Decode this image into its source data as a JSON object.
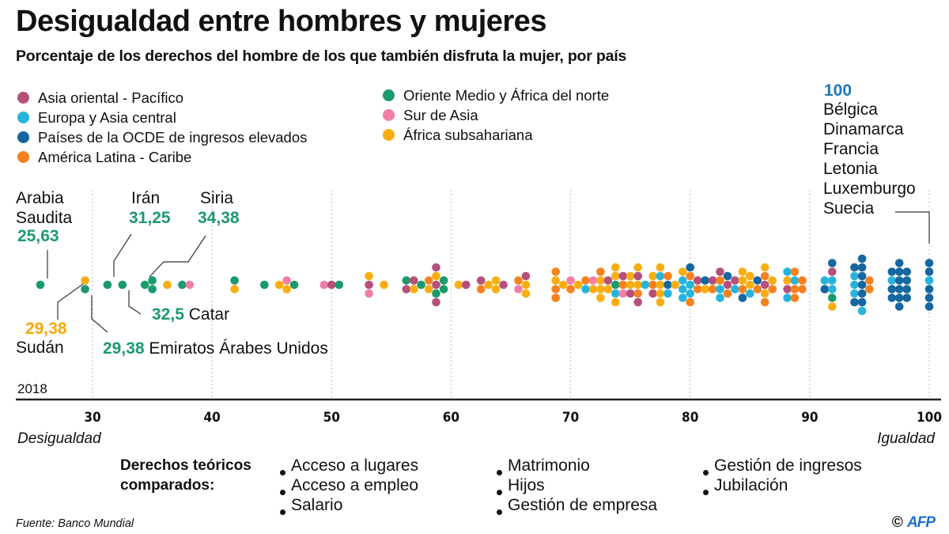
{
  "title": "Desigualdad entre hombres y mujeres",
  "subtitle": "Porcentaje de los derechos del hombre de los que también disfruta la mujer, por país",
  "legend": [
    {
      "label": "Asia oriental - Pacífico",
      "key": "eap",
      "color": "#b5507a"
    },
    {
      "label": "Europa y Asia central",
      "key": "eca",
      "color": "#27b4dc"
    },
    {
      "label": "Países de la OCDE de ingresos elevados",
      "key": "oecd",
      "color": "#14679f"
    },
    {
      "label": "América Latina - Caribe",
      "key": "lac",
      "color": "#f6821f"
    },
    {
      "label": "Oriente Medio y África del norte",
      "key": "mena",
      "color": "#1a9b6c"
    },
    {
      "label": "Sur de Asia",
      "key": "sa",
      "color": "#f07fa8"
    },
    {
      "label": "África subsahariana",
      "key": "ssa",
      "color": "#f8ae13"
    }
  ],
  "annotations": {
    "saudi_name": [
      "Arabia",
      "Saudita"
    ],
    "saudi_value": "25,63",
    "iran_name": "Irán",
    "iran_value": "31,25",
    "syria_name": "Siria",
    "syria_value": "34,38",
    "qatar_value": "32,5",
    "qatar_name": "Catar",
    "sudan_value": "29,38",
    "sudan_name": "Sudán",
    "uae_value": "29,38",
    "uae_name": "Emiratos Árabes Unidos",
    "top_value": "100",
    "top_countries": [
      "Bélgica",
      "Dinamarca",
      "Francia",
      "Letonia",
      "Luxemburgo",
      "Suecia"
    ]
  },
  "year": "2018",
  "axis_end_labels": {
    "left": "Desigualdad",
    "right": "Igualdad"
  },
  "rights": {
    "heading": [
      "Derechos teóricos",
      "comparados:"
    ],
    "items": [
      "Acceso a lugares",
      "Acceso a empleo",
      "Salario",
      "Matrimonio",
      "Hijos",
      "Gestión de empresa",
      "Gestión de ingresos",
      "Jubilación"
    ]
  },
  "source": "Fuente: Banco Mundial",
  "credit": {
    "symbol": "©",
    "brand": "AFP"
  },
  "chart_data": {
    "type": "scatter",
    "subtype": "beeswarm",
    "title": "Desigualdad entre hombres y mujeres",
    "xlabel": "Porcentaje de los derechos del hombre de los que también disfruta la mujer",
    "xlim": [
      24,
      100.5
    ],
    "xticks": [
      30,
      40,
      50,
      60,
      70,
      80,
      90,
      100
    ],
    "grid": true,
    "legend_position": "top-left",
    "groups": [
      {
        "x": 25.63,
        "regions": [
          "mena"
        ]
      },
      {
        "x": 29.38,
        "regions": [
          "ssa",
          "mena"
        ]
      },
      {
        "x": 31.25,
        "regions": [
          "mena"
        ]
      },
      {
        "x": 32.5,
        "regions": [
          "mena"
        ]
      },
      {
        "x": 34.38,
        "regions": [
          "mena"
        ]
      },
      {
        "x": 35.0,
        "regions": [
          "mena",
          "mena"
        ]
      },
      {
        "x": 36.25,
        "regions": [
          "ssa"
        ]
      },
      {
        "x": 37.5,
        "regions": [
          "mena"
        ]
      },
      {
        "x": 38.13,
        "regions": [
          "sa"
        ]
      },
      {
        "x": 41.88,
        "regions": [
          "mena",
          "ssa"
        ]
      },
      {
        "x": 44.38,
        "regions": [
          "mena"
        ]
      },
      {
        "x": 45.63,
        "regions": [
          "ssa"
        ]
      },
      {
        "x": 46.25,
        "regions": [
          "sa",
          "ssa"
        ]
      },
      {
        "x": 46.88,
        "regions": [
          "mena"
        ]
      },
      {
        "x": 49.38,
        "regions": [
          "sa"
        ]
      },
      {
        "x": 50.0,
        "regions": [
          "eap"
        ]
      },
      {
        "x": 50.63,
        "regions": [
          "mena"
        ]
      },
      {
        "x": 53.13,
        "regions": [
          "ssa",
          "eap",
          "sa"
        ]
      },
      {
        "x": 54.38,
        "regions": [
          "ssa"
        ]
      },
      {
        "x": 56.25,
        "regions": [
          "mena",
          "eap"
        ]
      },
      {
        "x": 56.88,
        "regions": [
          "eap",
          "ssa"
        ]
      },
      {
        "x": 57.5,
        "regions": [
          "mena"
        ]
      },
      {
        "x": 58.13,
        "regions": [
          "lac",
          "ssa"
        ]
      },
      {
        "x": 58.75,
        "regions": [
          "eap",
          "ssa",
          "eap",
          "mena",
          "eap"
        ]
      },
      {
        "x": 59.38,
        "regions": [
          "mena",
          "mena"
        ]
      },
      {
        "x": 60.63,
        "regions": [
          "ssa"
        ]
      },
      {
        "x": 61.25,
        "regions": [
          "eap"
        ]
      },
      {
        "x": 62.5,
        "regions": [
          "eap",
          "lac"
        ]
      },
      {
        "x": 63.13,
        "regions": [
          "ssa"
        ]
      },
      {
        "x": 63.75,
        "regions": [
          "ssa",
          "ssa"
        ]
      },
      {
        "x": 64.38,
        "regions": [
          "eap"
        ]
      },
      {
        "x": 65.63,
        "regions": [
          "lac",
          "sa"
        ]
      },
      {
        "x": 66.25,
        "regions": [
          "eap",
          "ssa",
          "ssa"
        ]
      },
      {
        "x": 68.75,
        "regions": [
          "lac",
          "ssa",
          "lac",
          "lac"
        ]
      },
      {
        "x": 69.38,
        "regions": [
          "ssa"
        ]
      },
      {
        "x": 70.0,
        "regions": [
          "sa",
          "lac"
        ]
      },
      {
        "x": 70.63,
        "regions": [
          "ssa"
        ]
      },
      {
        "x": 71.25,
        "regions": [
          "lac",
          "eca"
        ]
      },
      {
        "x": 71.88,
        "regions": [
          "sa",
          "ssa"
        ]
      },
      {
        "x": 72.5,
        "regions": [
          "lac",
          "ssa",
          "ssa",
          "ssa"
        ]
      },
      {
        "x": 73.13,
        "regions": [
          "eap",
          "ssa"
        ]
      },
      {
        "x": 73.75,
        "regions": [
          "ssa",
          "ssa",
          "mena",
          "eca",
          "ssa"
        ]
      },
      {
        "x": 74.38,
        "regions": [
          "eap",
          "lac",
          "sa"
        ]
      },
      {
        "x": 75.0,
        "regions": [
          "ssa",
          "ssa",
          "eap"
        ]
      },
      {
        "x": 75.63,
        "regions": [
          "ssa",
          "eap",
          "ssa",
          "lac",
          "eap"
        ]
      },
      {
        "x": 76.25,
        "regions": [
          "eca"
        ]
      },
      {
        "x": 76.88,
        "regions": [
          "ssa",
          "lac",
          "eap"
        ]
      },
      {
        "x": 77.5,
        "regions": [
          "ssa",
          "eca",
          "ssa",
          "ssa",
          "ssa"
        ]
      },
      {
        "x": 78.13,
        "regions": [
          "lac",
          "oecd",
          "eca"
        ]
      },
      {
        "x": 78.75,
        "regions": [
          "ssa"
        ]
      },
      {
        "x": 79.38,
        "regions": [
          "ssa",
          "eca",
          "eca",
          "eca"
        ]
      },
      {
        "x": 80.0,
        "regions": [
          "oecd",
          "lac",
          "eca",
          "eca",
          "lac"
        ]
      },
      {
        "x": 80.63,
        "regions": [
          "eap",
          "lac"
        ]
      },
      {
        "x": 81.25,
        "regions": [
          "oecd",
          "ssa"
        ]
      },
      {
        "x": 81.88,
        "regions": [
          "eap",
          "lac"
        ]
      },
      {
        "x": 82.5,
        "regions": [
          "eap",
          "lac",
          "eca",
          "eca"
        ]
      },
      {
        "x": 83.13,
        "regions": [
          "oecd",
          "eap",
          "lac"
        ]
      },
      {
        "x": 83.75,
        "regions": [
          "eap",
          "eca"
        ]
      },
      {
        "x": 84.38,
        "regions": [
          "ssa",
          "ssa",
          "lac",
          "oecd"
        ]
      },
      {
        "x": 85.0,
        "regions": [
          "ssa",
          "ssa",
          "eca"
        ]
      },
      {
        "x": 85.63,
        "regions": [
          "oecd",
          "lac"
        ]
      },
      {
        "x": 86.25,
        "regions": [
          "ssa",
          "lac",
          "eap",
          "ssa",
          "lac"
        ]
      },
      {
        "x": 86.88,
        "regions": [
          "ssa",
          "lac"
        ]
      },
      {
        "x": 88.13,
        "regions": [
          "eca",
          "ssa",
          "eap",
          "eca"
        ]
      },
      {
        "x": 88.75,
        "regions": [
          "lac",
          "eca",
          "lac",
          "lac"
        ]
      },
      {
        "x": 89.38,
        "regions": [
          "lac",
          "lac"
        ]
      },
      {
        "x": 91.25,
        "regions": [
          "eca",
          "oecd"
        ]
      },
      {
        "x": 91.88,
        "regions": [
          "oecd",
          "eap",
          "eca",
          "eca",
          "mena",
          "ssa"
        ]
      },
      {
        "x": 93.75,
        "regions": [
          "oecd",
          "eca",
          "eca",
          "eca",
          "oecd"
        ]
      },
      {
        "x": 94.38,
        "regions": [
          "oecd",
          "oecd",
          "oecd",
          "oecd",
          "oecd",
          "oecd",
          "eca"
        ]
      },
      {
        "x": 95.0,
        "regions": [
          "lac",
          "lac"
        ]
      },
      {
        "x": 96.88,
        "regions": [
          "oecd",
          "eca",
          "oecd",
          "oecd"
        ]
      },
      {
        "x": 97.5,
        "regions": [
          "oecd",
          "oecd",
          "oecd",
          "oecd",
          "oecd",
          "oecd"
        ]
      },
      {
        "x": 98.13,
        "regions": [
          "oecd",
          "oecd",
          "oecd",
          "oecd"
        ]
      },
      {
        "x": 100.0,
        "regions": [
          "oecd",
          "oecd",
          "eca",
          "oecd",
          "oecd",
          "oecd"
        ]
      }
    ]
  }
}
